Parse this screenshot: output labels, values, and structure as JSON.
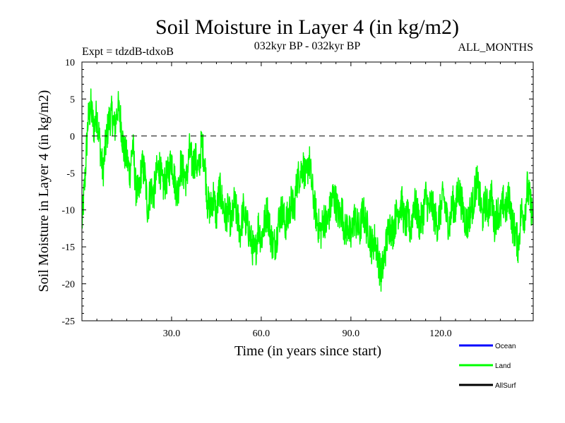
{
  "chart_data": {
    "type": "line",
    "title": "Soil Moisture in Layer 4 (in kg/m2)",
    "subtitle": "032kyr BP - 032kyr BP",
    "left_note": "Expt = tdzdB-tdxoB",
    "right_note": "ALL_MONTHS",
    "xlabel": "Time (in years since start)",
    "ylabel": "Soil Moisture in Layer 4 (in kg/m2)",
    "xlim": [
      0,
      151
    ],
    "ylim": [
      -25,
      10
    ],
    "xticks": [
      30,
      60,
      90,
      120
    ],
    "xtick_labels": [
      "30.0",
      "60.0",
      "90.0",
      "120.0"
    ],
    "yticks": [
      10,
      5,
      0,
      -5,
      -10,
      -15,
      -20,
      -25
    ],
    "ytick_labels": [
      "10",
      "5",
      "0",
      "-5",
      "-10",
      "-15",
      "-20",
      "-25"
    ],
    "zero_line": 0,
    "legend": [
      {
        "name": "Ocean",
        "color": "#0000ff"
      },
      {
        "name": "Land",
        "color": "#00ff00"
      },
      {
        "name": "AllSurf",
        "color": "#000000"
      }
    ],
    "series": [
      {
        "name": "Land",
        "color": "#00ff00",
        "x": [
          0,
          1,
          2,
          3,
          4,
          5,
          6,
          7,
          8,
          9,
          10,
          11,
          12,
          13,
          14,
          15,
          16,
          17,
          18,
          19,
          20,
          21,
          22,
          23,
          24,
          25,
          26,
          27,
          28,
          29,
          30,
          31,
          32,
          33,
          34,
          35,
          36,
          37,
          38,
          39,
          40,
          41,
          42,
          43,
          44,
          45,
          46,
          47,
          48,
          49,
          50,
          51,
          52,
          53,
          54,
          55,
          56,
          57,
          58,
          59,
          60,
          61,
          62,
          63,
          64,
          65,
          66,
          67,
          68,
          69,
          70,
          71,
          72,
          73,
          74,
          75,
          76,
          77,
          78,
          79,
          80,
          81,
          82,
          83,
          84,
          85,
          86,
          87,
          88,
          89,
          90,
          91,
          92,
          93,
          94,
          95,
          96,
          97,
          98,
          99,
          100,
          101,
          102,
          103,
          104,
          105,
          106,
          107,
          108,
          109,
          110,
          111,
          112,
          113,
          114,
          115,
          116,
          117,
          118,
          119,
          120,
          121,
          122,
          123,
          124,
          125,
          126,
          127,
          128,
          129,
          130,
          131,
          132,
          133,
          134,
          135,
          136,
          137,
          138,
          139,
          140,
          141,
          142,
          143,
          144,
          145,
          146,
          147,
          148,
          149,
          150,
          151
        ],
        "values": [
          -12,
          -6,
          2,
          4,
          1,
          3,
          -1,
          -5,
          -1,
          2,
          3,
          1,
          4,
          2,
          -2,
          -3,
          -5,
          -1,
          -7,
          -8,
          -4,
          -5,
          -10,
          -7,
          -8,
          -5,
          -4,
          -7,
          -6,
          -5,
          -3,
          -6,
          -8,
          -4,
          -5,
          -6,
          -2,
          -4,
          -3,
          -5,
          -1,
          -3,
          -9,
          -10,
          -8,
          -11,
          -7,
          -9,
          -11,
          -10,
          -12,
          -9,
          -11,
          -13,
          -10,
          -12,
          -13,
          -15,
          -16,
          -12,
          -14,
          -12,
          -10,
          -13,
          -15,
          -14,
          -11,
          -10,
          -12,
          -11,
          -9,
          -10,
          -6,
          -5,
          -4,
          -6,
          -3,
          -7,
          -10,
          -12,
          -13,
          -11,
          -12,
          -10,
          -8,
          -9,
          -11,
          -10,
          -13,
          -12,
          -14,
          -11,
          -12,
          -13,
          -10,
          -12,
          -13,
          -15,
          -14,
          -16,
          -19,
          -17,
          -14,
          -12,
          -13,
          -11,
          -10,
          -9,
          -12,
          -11,
          -13,
          -9,
          -10,
          -12,
          -11,
          -8,
          -10,
          -9,
          -11,
          -12,
          -10,
          -8,
          -11,
          -12,
          -9,
          -10,
          -7,
          -9,
          -11,
          -12,
          -10,
          -9,
          -6,
          -8,
          -11,
          -9,
          -10,
          -8,
          -12,
          -10,
          -11,
          -9,
          -10,
          -8,
          -12,
          -13,
          -15,
          -10,
          -11,
          -7,
          -9,
          -11
        ]
      }
    ]
  }
}
